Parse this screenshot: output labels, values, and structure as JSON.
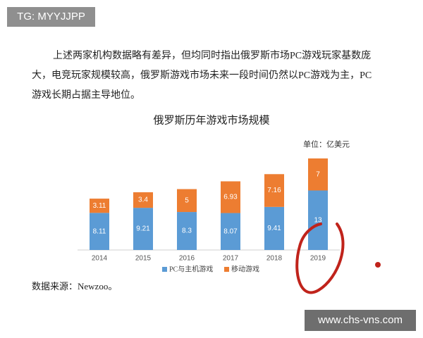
{
  "watermark": "TG: MYYJJPP",
  "paragraph": [
    "上述两家机构数据略有差异，但均同时指出俄罗斯市场PC游戏玩家基数庞",
    "大，电竞玩家规模较高，俄罗斯游戏市场未来一段时间仍然以PC游戏为主，PC",
    "游戏长期占据主导地位。"
  ],
  "chart_data": {
    "type": "stacked_bar",
    "title": "俄罗斯历年游戏市场规模",
    "unit": "单位：亿美元",
    "categories": [
      "2014",
      "2015",
      "2016",
      "2017",
      "2018",
      "2019"
    ],
    "series": [
      {
        "name": "PC与主机游戏",
        "color": "#5b9bd5",
        "values": [
          8.11,
          9.21,
          8.3,
          8.07,
          9.41,
          13
        ]
      },
      {
        "name": "移动游戏",
        "color": "#ed7d31",
        "values": [
          3.11,
          3.4,
          5,
          6.93,
          7.16,
          7
        ]
      }
    ]
  },
  "source": "数据来源：Newzoo。",
  "footer_watermark": "www.chs-vns.com"
}
